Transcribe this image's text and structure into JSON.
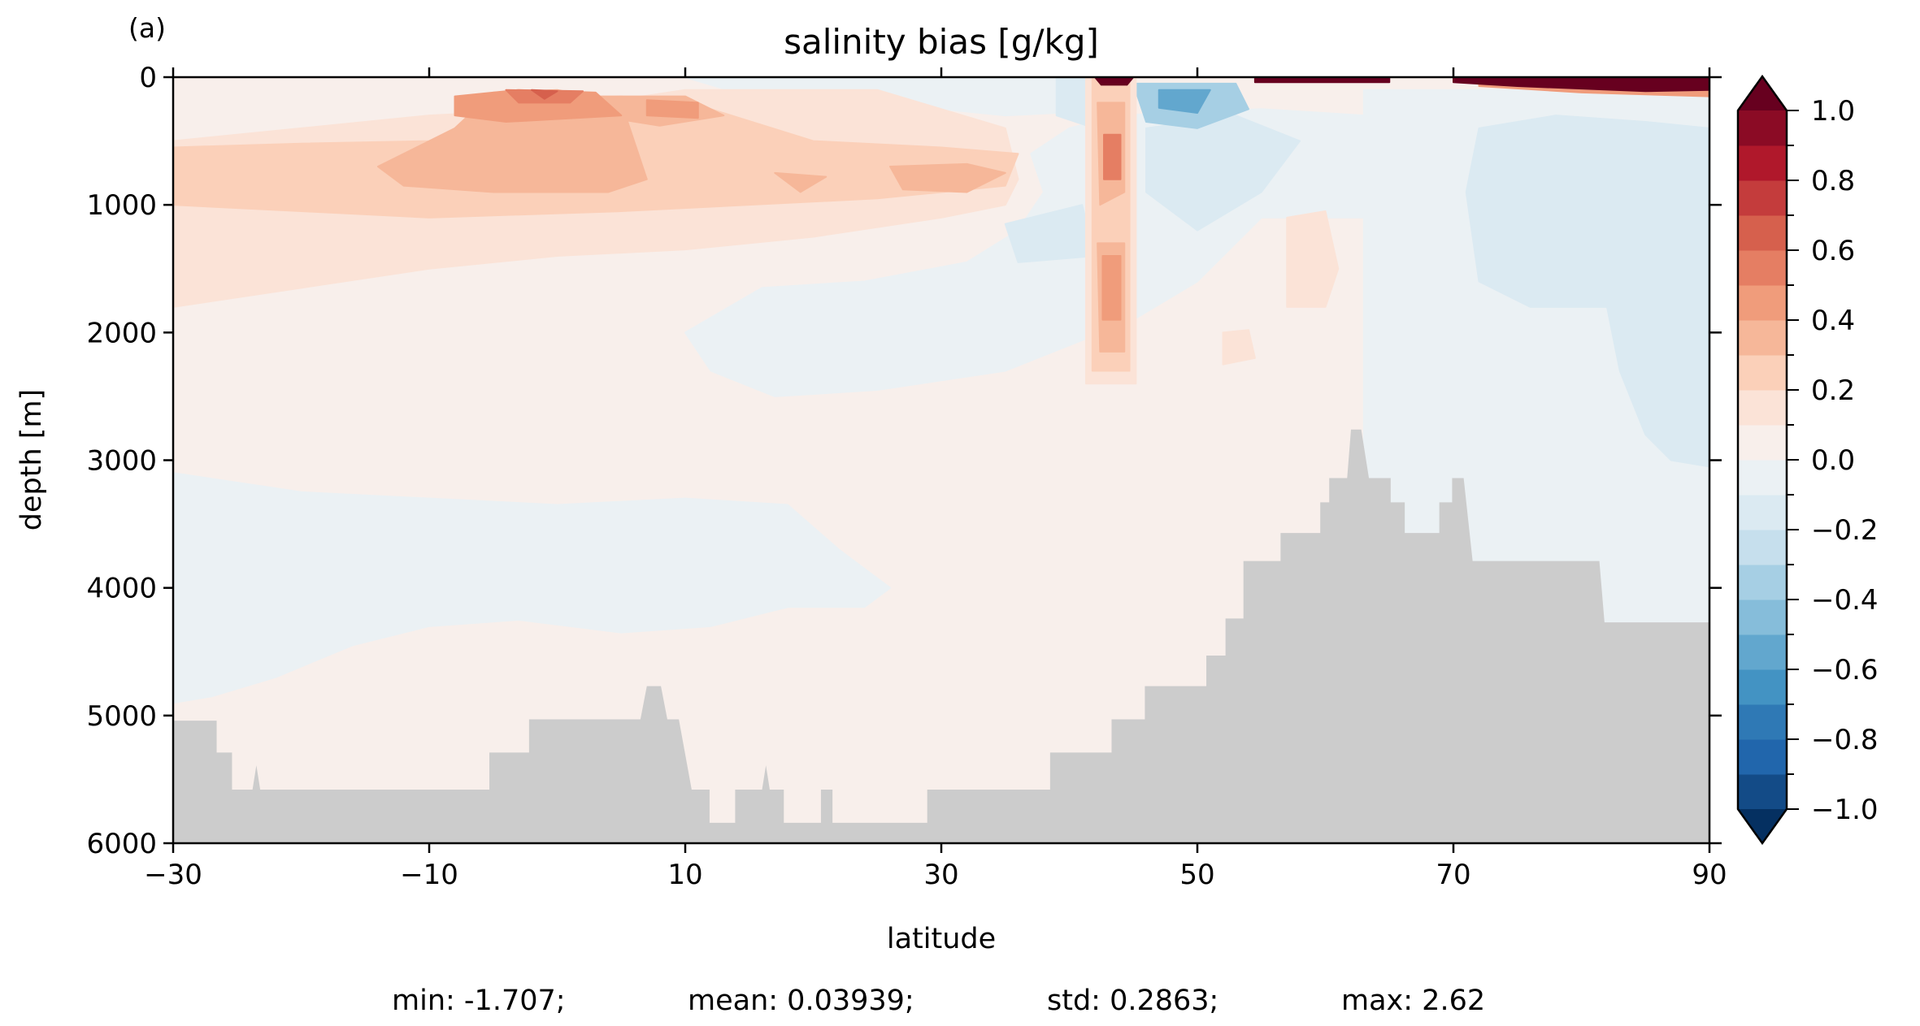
{
  "chart_data": {
    "type": "contourf",
    "panel_label": "(a)",
    "title": "salinity bias [g/kg]",
    "xlabel": "latitude",
    "ylabel": "depth [m]",
    "xlim": [
      -30,
      90
    ],
    "ylim": [
      6000,
      0
    ],
    "xticks": [
      -30,
      -10,
      10,
      30,
      50,
      70,
      90
    ],
    "xtick_labels": [
      "−30",
      "−10",
      "10",
      "30",
      "50",
      "70",
      "90"
    ],
    "yticks": [
      0,
      1000,
      2000,
      3000,
      4000,
      5000,
      6000
    ],
    "ytick_labels": [
      "0",
      "1000",
      "2000",
      "3000",
      "4000",
      "5000",
      "6000"
    ],
    "colorbar": {
      "levels_min": -1.0,
      "levels_max": 1.0,
      "level_step": 0.1,
      "extend": "both",
      "ticks": [
        1.0,
        0.8,
        0.6,
        0.4,
        0.2,
        0.0,
        -0.2,
        -0.4,
        -0.6,
        -0.8,
        -1.0
      ],
      "tick_labels": [
        "1.0",
        "0.8",
        "0.6",
        "0.4",
        "0.2",
        "0.0",
        "−0.2",
        "−0.4",
        "−0.6",
        "−0.8",
        "−1.0"
      ],
      "colors": [
        "#053061",
        "#134b87",
        "#2166ac",
        "#2f79b5",
        "#4393c3",
        "#62a7ce",
        "#86bdda",
        "#a6cfe4",
        "#c6dfed",
        "#dbeaf2",
        "#ebf1f4",
        "#f8efeb",
        "#fbe3d7",
        "#fbd0b9",
        "#f6b799",
        "#f09c7b",
        "#e57e63",
        "#d6604d",
        "#c43c3c",
        "#b0182b",
        "#8b0b25",
        "#67001f"
      ]
    },
    "background_level": 0.05,
    "contour_regions": [
      {
        "level": -0.05,
        "points": [
          [
            -30,
            3100
          ],
          [
            -20,
            3250
          ],
          [
            -10,
            3300
          ],
          [
            0,
            3350
          ],
          [
            10,
            3300
          ],
          [
            18,
            3350
          ],
          [
            22,
            3700
          ],
          [
            26,
            4000
          ],
          [
            24,
            4150
          ],
          [
            18,
            4150
          ],
          [
            12,
            4300
          ],
          [
            5,
            4350
          ],
          [
            -3,
            4250
          ],
          [
            -10,
            4300
          ],
          [
            -16,
            4450
          ],
          [
            -22,
            4700
          ],
          [
            -27,
            4850
          ],
          [
            -30,
            4900
          ]
        ]
      },
      {
        "level": -0.05,
        "points": [
          [
            10,
            2000
          ],
          [
            16,
            1650
          ],
          [
            24,
            1600
          ],
          [
            32,
            1450
          ],
          [
            36,
            1200
          ],
          [
            38,
            900
          ],
          [
            37,
            600
          ],
          [
            40,
            400
          ],
          [
            44,
            300
          ],
          [
            55,
            250
          ],
          [
            63,
            300
          ],
          [
            63,
            1100
          ],
          [
            55,
            1100
          ],
          [
            50,
            1600
          ],
          [
            45,
            1900
          ],
          [
            40,
            2100
          ],
          [
            35,
            2300
          ],
          [
            25,
            2450
          ],
          [
            17,
            2500
          ],
          [
            12,
            2300
          ]
        ]
      },
      {
        "level": -0.05,
        "points": [
          [
            63,
            100
          ],
          [
            90,
            100
          ],
          [
            90,
            4300
          ],
          [
            63,
            4300
          ]
        ]
      },
      {
        "level": -0.05,
        "points": [
          [
            10,
            0
          ],
          [
            45,
            0
          ],
          [
            45,
            250
          ],
          [
            35,
            300
          ],
          [
            25,
            200
          ],
          [
            15,
            150
          ]
        ]
      },
      {
        "level": -0.15,
        "points": [
          [
            72,
            400
          ],
          [
            78,
            300
          ],
          [
            85,
            350
          ],
          [
            90,
            400
          ],
          [
            90,
            3050
          ],
          [
            87,
            3000
          ],
          [
            85,
            2800
          ],
          [
            83,
            2300
          ],
          [
            82,
            1800
          ],
          [
            76,
            1800
          ],
          [
            72,
            1600
          ],
          [
            71,
            900
          ]
        ]
      },
      {
        "level": -0.15,
        "points": [
          [
            39,
            0
          ],
          [
            42,
            0
          ],
          [
            42,
            400
          ],
          [
            39,
            300
          ]
        ]
      },
      {
        "level": -0.15,
        "points": [
          [
            46,
            400
          ],
          [
            53,
            300
          ],
          [
            58,
            500
          ],
          [
            55,
            900
          ],
          [
            50,
            1200
          ],
          [
            46,
            900
          ]
        ]
      },
      {
        "level": -0.15,
        "points": [
          [
            35,
            1150
          ],
          [
            41,
            1000
          ],
          [
            42,
            1400
          ],
          [
            36,
            1450
          ]
        ]
      },
      {
        "level": -0.35,
        "points": [
          [
            45,
            50
          ],
          [
            53,
            50
          ],
          [
            54,
            250
          ],
          [
            50,
            400
          ],
          [
            46,
            350
          ]
        ]
      },
      {
        "level": -0.55,
        "points": [
          [
            47,
            100
          ],
          [
            51,
            100
          ],
          [
            50,
            280
          ],
          [
            47,
            240
          ]
        ]
      },
      {
        "level": 0.15,
        "points": [
          [
            -30,
            500
          ],
          [
            -20,
            400
          ],
          [
            -10,
            300
          ],
          [
            0,
            250
          ],
          [
            10,
            100
          ],
          [
            25,
            100
          ],
          [
            35,
            400
          ],
          [
            36,
            800
          ],
          [
            35,
            1000
          ],
          [
            30,
            1100
          ],
          [
            20,
            1250
          ],
          [
            10,
            1350
          ],
          [
            0,
            1400
          ],
          [
            -10,
            1500
          ],
          [
            -20,
            1650
          ],
          [
            -30,
            1800
          ]
        ]
      },
      {
        "level": 0.25,
        "points": [
          [
            -30,
            550
          ],
          [
            -20,
            520
          ],
          [
            -10,
            500
          ],
          [
            -3,
            200
          ],
          [
            5,
            150
          ],
          [
            12,
            250
          ],
          [
            20,
            500
          ],
          [
            30,
            550
          ],
          [
            36,
            600
          ],
          [
            35,
            850
          ],
          [
            25,
            950
          ],
          [
            15,
            1000
          ],
          [
            5,
            1050
          ],
          [
            -10,
            1100
          ],
          [
            -20,
            1050
          ],
          [
            -30,
            1000
          ]
        ]
      },
      {
        "level": 0.35,
        "points": [
          [
            -8,
            400
          ],
          [
            -5,
            120
          ],
          [
            0,
            100
          ],
          [
            5,
            200
          ],
          [
            7,
            800
          ],
          [
            4,
            900
          ],
          [
            -5,
            900
          ],
          [
            -12,
            850
          ],
          [
            -14,
            700
          ]
        ]
      },
      {
        "level": 0.35,
        "points": [
          [
            3,
            150
          ],
          [
            10,
            150
          ],
          [
            13,
            300
          ],
          [
            8,
            380
          ],
          [
            3,
            300
          ]
        ]
      },
      {
        "level": 0.35,
        "points": [
          [
            26,
            700
          ],
          [
            32,
            680
          ],
          [
            35,
            750
          ],
          [
            32,
            900
          ],
          [
            27,
            880
          ]
        ]
      },
      {
        "level": 0.35,
        "points": [
          [
            17,
            750
          ],
          [
            21,
            780
          ],
          [
            19,
            900
          ]
        ]
      },
      {
        "level": 0.45,
        "points": [
          [
            -8,
            150
          ],
          [
            -3,
            100
          ],
          [
            3,
            120
          ],
          [
            5,
            300
          ],
          [
            -4,
            350
          ],
          [
            -8,
            300
          ]
        ]
      },
      {
        "level": 0.45,
        "points": [
          [
            7,
            180
          ],
          [
            11,
            200
          ],
          [
            11,
            320
          ],
          [
            7,
            300
          ]
        ]
      },
      {
        "level": 0.55,
        "points": [
          [
            -4,
            100
          ],
          [
            2,
            110
          ],
          [
            1,
            200
          ],
          [
            -3,
            200
          ]
        ]
      },
      {
        "level": 0.65,
        "points": [
          [
            -2,
            100
          ],
          [
            0,
            110
          ],
          [
            -1,
            170
          ]
        ]
      },
      {
        "level": 0.15,
        "points": [
          [
            41.3,
            0
          ],
          [
            45.2,
            0
          ],
          [
            45.2,
            2400
          ],
          [
            41.3,
            2400
          ]
        ]
      },
      {
        "level": 0.15,
        "points": [
          [
            57,
            1100
          ],
          [
            60,
            1050
          ],
          [
            61,
            1500
          ],
          [
            60,
            1800
          ],
          [
            57,
            1800
          ]
        ]
      },
      {
        "level": 0.15,
        "points": [
          [
            52,
            2000
          ],
          [
            54,
            1980
          ],
          [
            54.5,
            2200
          ],
          [
            52,
            2250
          ]
        ]
      },
      {
        "level": 0.25,
        "points": [
          [
            41.8,
            0
          ],
          [
            44.7,
            0
          ],
          [
            44.7,
            2300
          ],
          [
            41.8,
            2300
          ]
        ]
      },
      {
        "level": 0.35,
        "points": [
          [
            42.2,
            200
          ],
          [
            44.3,
            200
          ],
          [
            44.3,
            900
          ],
          [
            42.4,
            1000
          ]
        ]
      },
      {
        "level": 0.35,
        "points": [
          [
            42.2,
            1300
          ],
          [
            44.3,
            1300
          ],
          [
            44.3,
            2150
          ],
          [
            42.4,
            2150
          ]
        ]
      },
      {
        "level": 0.45,
        "points": [
          [
            42.6,
            1400
          ],
          [
            44,
            1400
          ],
          [
            44,
            1900
          ],
          [
            42.6,
            1900
          ]
        ]
      },
      {
        "level": 0.55,
        "points": [
          [
            42.7,
            450
          ],
          [
            44,
            450
          ],
          [
            44,
            800
          ],
          [
            42.7,
            800
          ]
        ]
      },
      {
        "level": 0.45,
        "points": [
          [
            72,
            0
          ],
          [
            90,
            0
          ],
          [
            90,
            150
          ],
          [
            80,
            120
          ],
          [
            72,
            70
          ]
        ]
      },
      {
        "level": 1.05,
        "points": [
          [
            42,
            0
          ],
          [
            45,
            0
          ],
          [
            44.5,
            60
          ],
          [
            42.5,
            60
          ]
        ]
      },
      {
        "level": 1.05,
        "points": [
          [
            54.5,
            0
          ],
          [
            65,
            0
          ],
          [
            65,
            40
          ],
          [
            54.5,
            40
          ]
        ]
      },
      {
        "level": 1.05,
        "points": [
          [
            70,
            0
          ],
          [
            90,
            0
          ],
          [
            90,
            100
          ],
          [
            85,
            110
          ],
          [
            75,
            70
          ],
          [
            70,
            40
          ]
        ]
      }
    ],
    "bathymetry_color": "#cccccc",
    "bathymetry": [
      [
        -30,
        5040
      ],
      [
        -26.6,
        5040
      ],
      [
        -26.6,
        5290
      ],
      [
        -25.4,
        5290
      ],
      [
        -25.4,
        5580
      ],
      [
        -23.8,
        5580
      ],
      [
        -23.5,
        5390
      ],
      [
        -23.2,
        5580
      ],
      [
        -5.3,
        5580
      ],
      [
        -5.3,
        5290
      ],
      [
        -2.2,
        5290
      ],
      [
        -2.2,
        5030
      ],
      [
        6.5,
        5030
      ],
      [
        7.0,
        4770
      ],
      [
        8.1,
        4770
      ],
      [
        8.6,
        5030
      ],
      [
        9.5,
        5030
      ],
      [
        10.5,
        5580
      ],
      [
        11.9,
        5580
      ],
      [
        11.9,
        5840
      ],
      [
        13.9,
        5840
      ],
      [
        13.9,
        5580
      ],
      [
        16.0,
        5580
      ],
      [
        16.3,
        5390
      ],
      [
        16.6,
        5580
      ],
      [
        17.7,
        5580
      ],
      [
        17.7,
        5840
      ],
      [
        20.6,
        5840
      ],
      [
        20.6,
        5580
      ],
      [
        21.5,
        5580
      ],
      [
        21.5,
        5840
      ],
      [
        28.9,
        5840
      ],
      [
        28.9,
        5580
      ],
      [
        38.5,
        5580
      ],
      [
        38.5,
        5290
      ],
      [
        43.3,
        5290
      ],
      [
        43.3,
        5030
      ],
      [
        45.9,
        5030
      ],
      [
        45.9,
        4770
      ],
      [
        50.7,
        4770
      ],
      [
        50.7,
        4530
      ],
      [
        52.2,
        4530
      ],
      [
        52.2,
        4240
      ],
      [
        53.6,
        4240
      ],
      [
        53.6,
        3790
      ],
      [
        56.5,
        3790
      ],
      [
        56.5,
        3570
      ],
      [
        59.6,
        3570
      ],
      [
        59.6,
        3330
      ],
      [
        60.3,
        3330
      ],
      [
        60.3,
        3140
      ],
      [
        61.7,
        3140
      ],
      [
        62.0,
        2760
      ],
      [
        62.8,
        2760
      ],
      [
        63.4,
        3140
      ],
      [
        65.1,
        3140
      ],
      [
        65.1,
        3330
      ],
      [
        66.2,
        3330
      ],
      [
        66.2,
        3570
      ],
      [
        68.9,
        3570
      ],
      [
        68.9,
        3330
      ],
      [
        69.9,
        3330
      ],
      [
        69.9,
        3140
      ],
      [
        70.8,
        3140
      ],
      [
        71.5,
        3790
      ],
      [
        81.4,
        3790
      ],
      [
        81.8,
        4270
      ],
      [
        90,
        4270
      ]
    ],
    "stats": {
      "min": "min: -1.707;",
      "mean": "mean: 0.03939;",
      "std": "std: 0.2863;",
      "max": "max: 2.62"
    }
  }
}
